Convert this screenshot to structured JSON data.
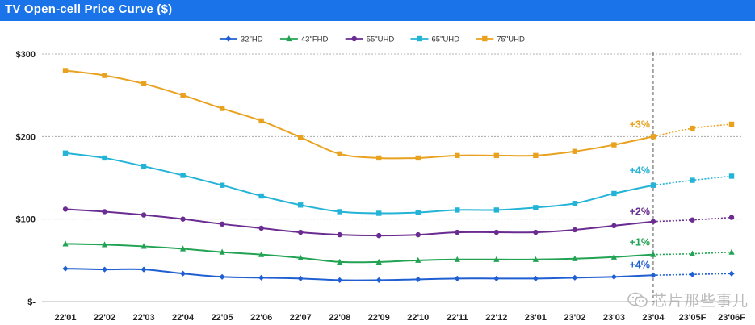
{
  "header": {
    "title": "TV Open-cell Price Curve ($)",
    "accent_color": "#1a73e8"
  },
  "watermark": {
    "text": "芯片那些事儿",
    "icon": "wechat-icon"
  },
  "chart_data": {
    "type": "line",
    "title": "TV Open-cell Price Curve ($)",
    "xlabel": "",
    "ylabel": "",
    "categories": [
      "22'01",
      "22'02",
      "22'03",
      "22'04",
      "22'05",
      "22'06",
      "22'07",
      "22'08",
      "22'09",
      "22'10",
      "22'11",
      "22'12",
      "23'01",
      "23'02",
      "23'03",
      "23'04",
      "23'05F",
      "23'06F"
    ],
    "ylim": [
      0,
      300
    ],
    "yticks": [
      0,
      100,
      200,
      300
    ],
    "ytick_labels": [
      "$-",
      "$100",
      "$200",
      "$300"
    ],
    "grid": "horizontal dotted",
    "legend_position": "top-center",
    "forecast_start_index": 15,
    "series": [
      {
        "name": "32\"HD",
        "color": "#1f5fd1",
        "marker": "diamond",
        "values": [
          40,
          39,
          39,
          34,
          30,
          29,
          28,
          26,
          26,
          27,
          28,
          28,
          28,
          29,
          30,
          32,
          33,
          34
        ],
        "annotation": "+4%"
      },
      {
        "name": "43\"FHD",
        "color": "#22a353",
        "marker": "triangle",
        "values": [
          70,
          69,
          67,
          64,
          60,
          57,
          53,
          48,
          48,
          50,
          51,
          51,
          51,
          52,
          54,
          57,
          58,
          60
        ],
        "annotation": "+1%"
      },
      {
        "name": "55\"UHD",
        "color": "#6a2c91",
        "marker": "circle",
        "values": [
          112,
          109,
          105,
          100,
          94,
          89,
          84,
          81,
          80,
          81,
          84,
          84,
          84,
          87,
          92,
          97,
          99,
          102
        ],
        "annotation": "+2%"
      },
      {
        "name": "65\"UHD",
        "color": "#23b3d6",
        "marker": "square",
        "values": [
          180,
          174,
          164,
          153,
          141,
          128,
          117,
          109,
          107,
          108,
          111,
          111,
          114,
          119,
          131,
          141,
          147,
          152
        ],
        "annotation": "+4%"
      },
      {
        "name": "75\"UHD",
        "color": "#e8a21f",
        "marker": "square",
        "values": [
          280,
          274,
          264,
          250,
          234,
          219,
          199,
          179,
          174,
          174,
          177,
          177,
          177,
          182,
          190,
          200,
          210,
          215
        ],
        "annotation": "+3%"
      }
    ]
  }
}
